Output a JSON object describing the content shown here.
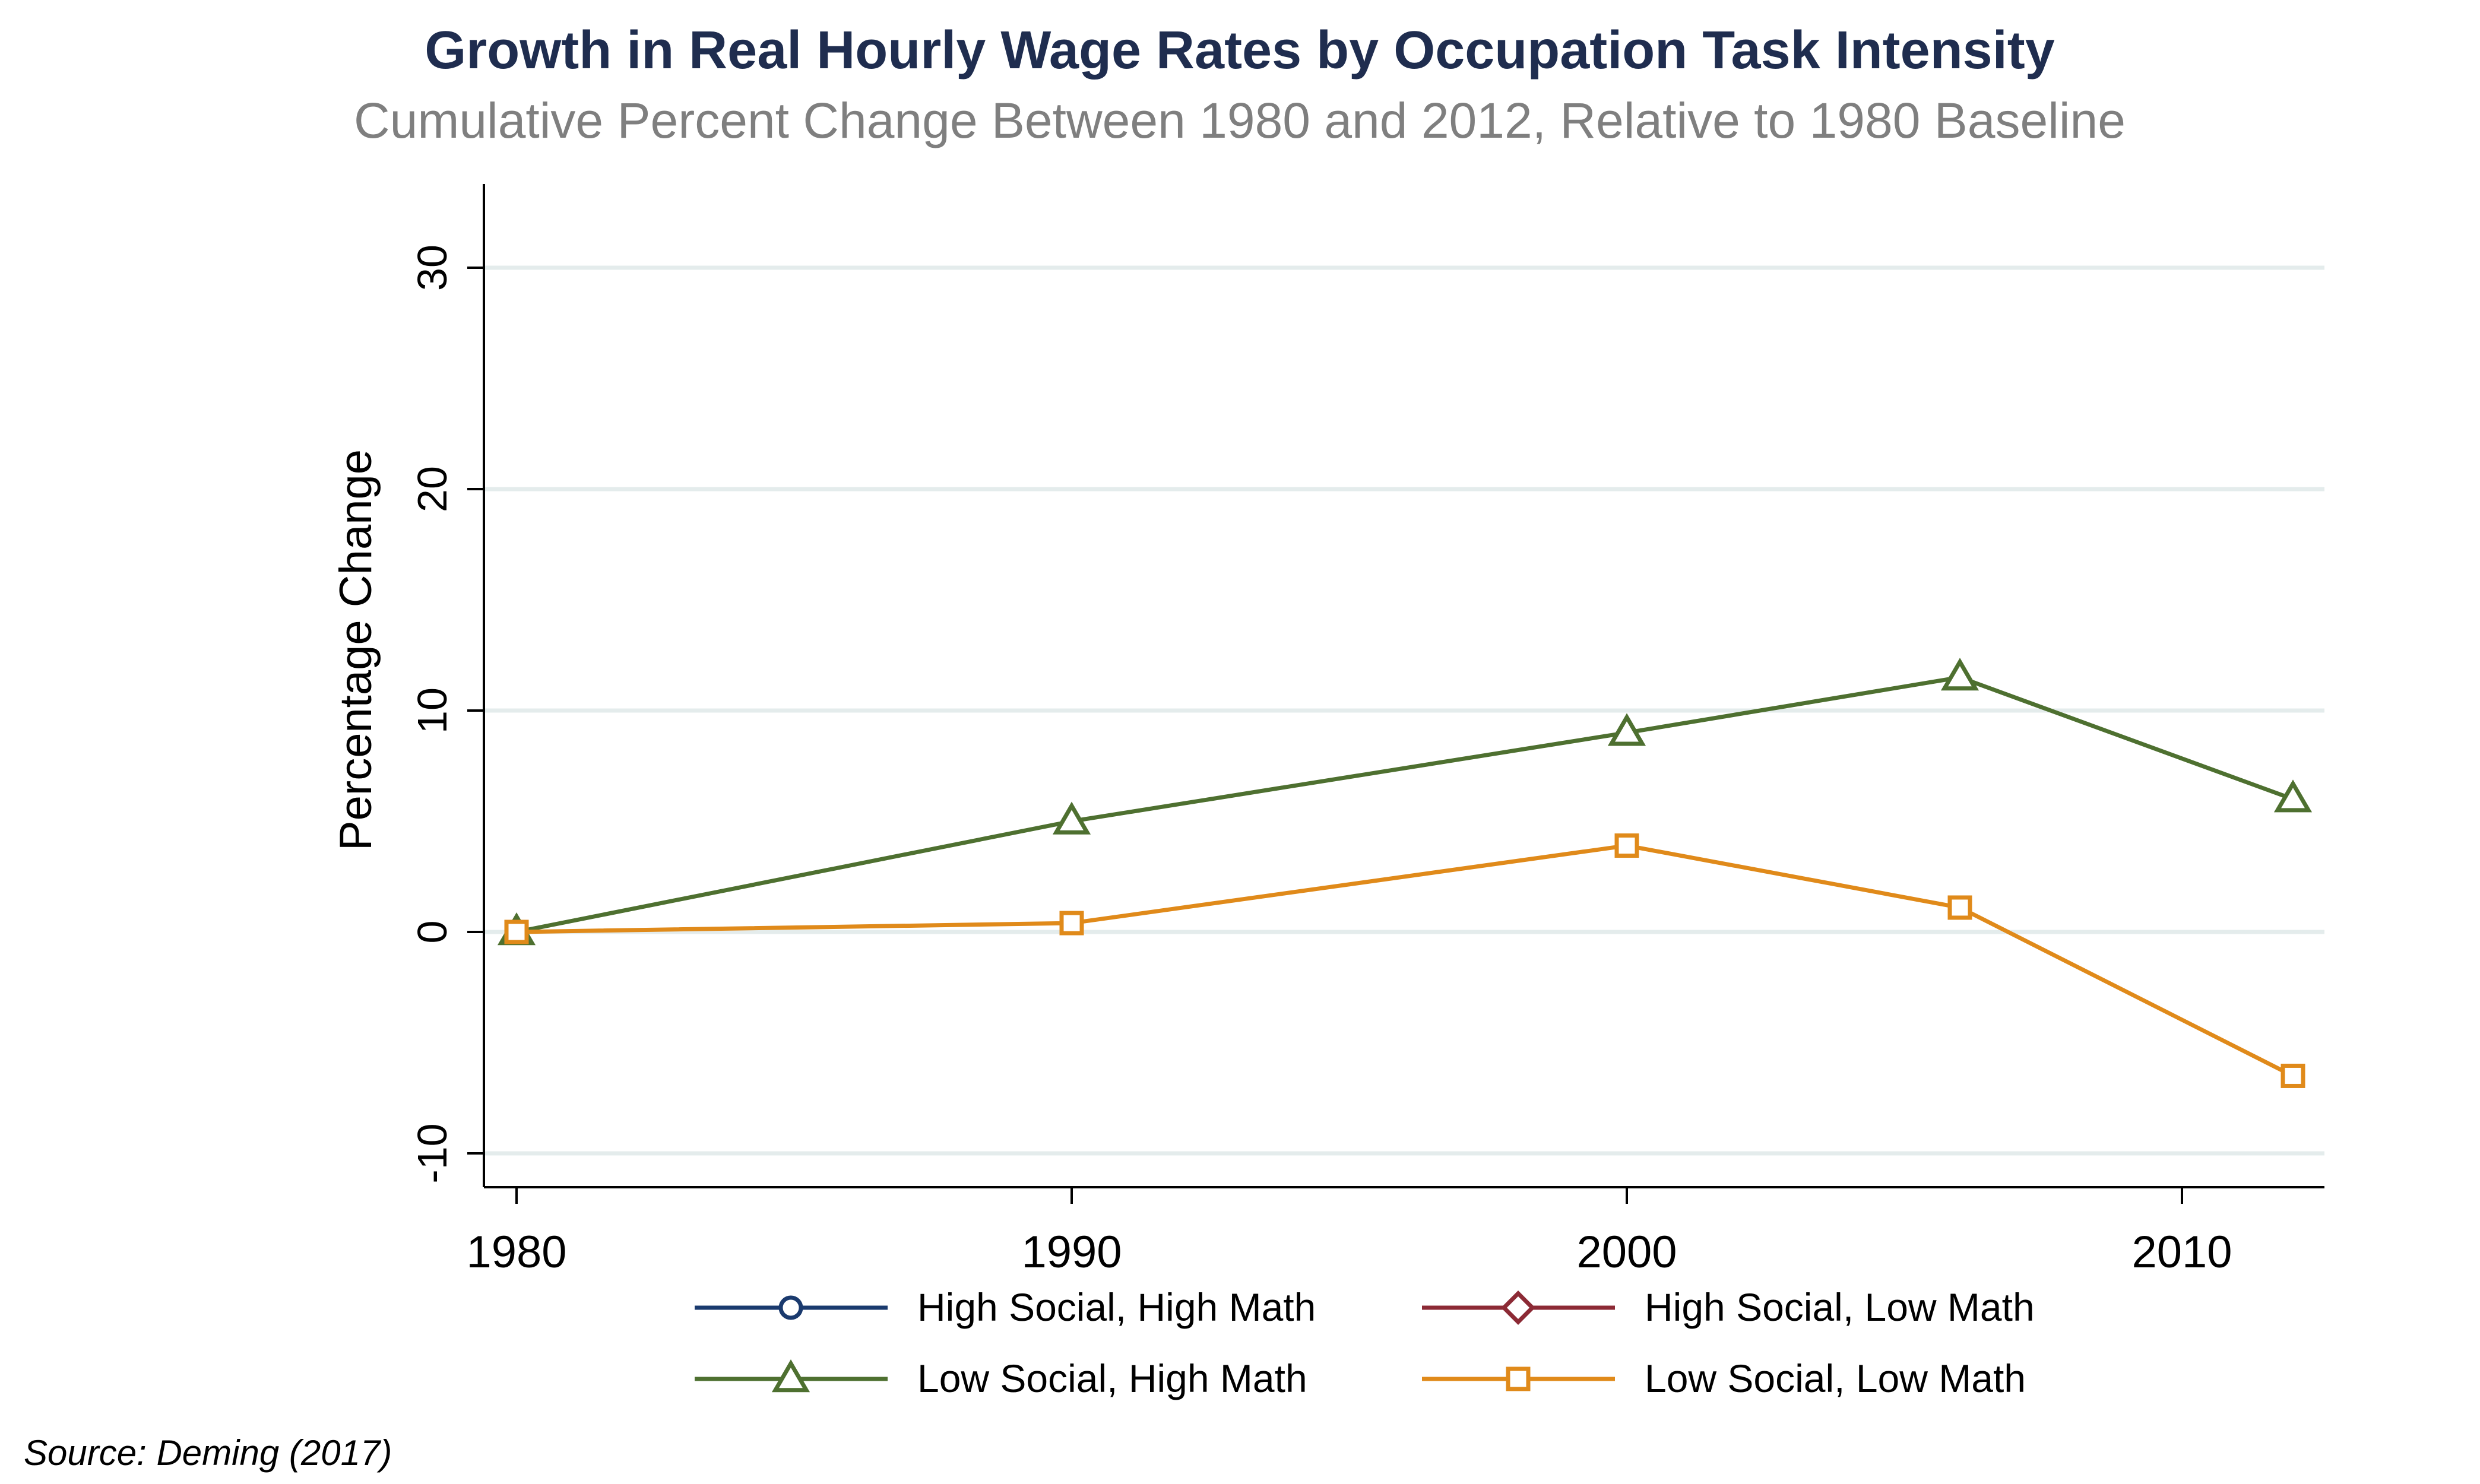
{
  "chart_data": {
    "type": "line",
    "title": "Growth in Real Hourly Wage Rates by Occupation Task Intensity",
    "subtitle": "Cumulative Percent Change Between 1980 and 2012, Relative to 1980 Baseline",
    "xlabel": "",
    "ylabel": "Percentage Change",
    "xlim": [
      1980,
      2012
    ],
    "ylim": [
      -10,
      33
    ],
    "xticks": [
      "1980",
      "1990",
      "2000",
      "2010"
    ],
    "yticks": [
      "-10",
      "0",
      "10",
      "20",
      "30"
    ],
    "grid": "horizontal",
    "legend_position": "bottom",
    "series": [
      {
        "name": "High Social, High Math",
        "color": "#1a3a6e",
        "marker": "circle",
        "x": [],
        "values": []
      },
      {
        "name": "High Social, Low Math",
        "color": "#8c2a35",
        "marker": "diamond",
        "x": [],
        "values": []
      },
      {
        "name": "Low Social, High Math",
        "color": "#4e7030",
        "marker": "triangle",
        "x": [
          1980,
          1990,
          2000,
          2006,
          2012
        ],
        "values": [
          0,
          5.0,
          9.0,
          11.5,
          6.0
        ]
      },
      {
        "name": "Low Social, Low Math",
        "color": "#e08a1a",
        "marker": "square",
        "x": [
          1980,
          1990,
          2000,
          2006,
          2012
        ],
        "values": [
          0,
          0.4,
          3.9,
          1.1,
          -6.5
        ]
      }
    ]
  },
  "source": "Source: Deming (2017)",
  "colors": {
    "title": "#1f2d4f",
    "subtitle": "#7f7f7f",
    "grid": "#e4ecec",
    "axis": "#000000"
  }
}
